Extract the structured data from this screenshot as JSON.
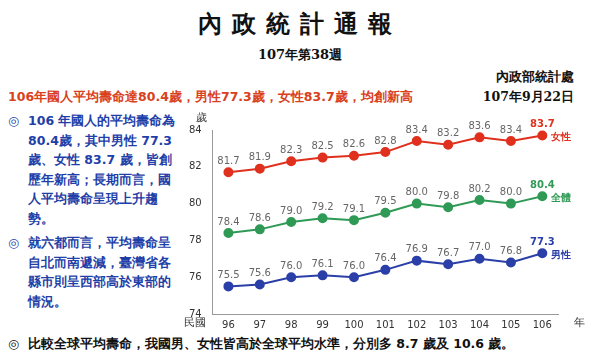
{
  "header": {
    "title": "內政統計通報",
    "issue": "107年第38週",
    "organization": "內政部統計處",
    "headline": "106年國人平均壽命達80.4歲，男性77.3歲，女性83.7歲，均創新高",
    "date": "107年9月22日"
  },
  "notes": {
    "bullet": "◎",
    "items": [
      "106 年國人的平均壽命為80.4歲，其中男性 77.3 歲、女性 83.7 歲，皆創歷年新高；長期而言，國人平均壽命呈現上升趨勢。",
      "就六都而言，平均壽命呈自北而南遞減，臺灣省各縣市則呈西部高於東部的情況。",
      "比較全球平均壽命，我國男、女性皆高於全球平均水準，分別多 8.7 歲及 10.6 歲。"
    ]
  },
  "chart_data": {
    "type": "line",
    "ylabel": "歲",
    "xlabel": "年",
    "x_prefix_label": "民國",
    "categories": [
      "96",
      "97",
      "98",
      "99",
      "100",
      "101",
      "102",
      "103",
      "104",
      "105",
      "106"
    ],
    "series": [
      {
        "name": "女性",
        "color": "#e0301e",
        "values": [
          81.7,
          81.9,
          82.3,
          82.5,
          82.6,
          82.8,
          83.4,
          83.2,
          83.6,
          83.4,
          83.7
        ],
        "value_labels": [
          "81.7",
          "81.9",
          "82.3",
          "82.5",
          "82.6",
          "82.8",
          "83.4",
          "83.2",
          "83.6",
          "83.4",
          "83.7"
        ]
      },
      {
        "name": "全體",
        "color": "#2f9a55",
        "values": [
          78.4,
          78.6,
          79.0,
          79.2,
          79.1,
          79.5,
          80.0,
          79.8,
          80.2,
          80.0,
          80.4
        ],
        "value_labels": [
          "78.4",
          "78.6",
          "79.0",
          "79.2",
          "79.1",
          "79.5",
          "80.0",
          "79.8",
          "80.2",
          "80.0",
          "80.4"
        ]
      },
      {
        "name": "男性",
        "color": "#2b3fa8",
        "values": [
          75.5,
          75.6,
          76.0,
          76.1,
          76.0,
          76.4,
          76.9,
          76.7,
          77.0,
          76.8,
          77.3
        ],
        "value_labels": [
          "75.5",
          "75.6",
          "76.0",
          "76.1",
          "76.0",
          "76.4",
          "76.9",
          "76.7",
          "77.0",
          "76.8",
          "77.3"
        ]
      }
    ],
    "ylim": [
      74,
      84
    ],
    "yticks": [
      74,
      76,
      78,
      80,
      82,
      84
    ],
    "grid": false,
    "marker": "circle",
    "data_labels": true
  }
}
